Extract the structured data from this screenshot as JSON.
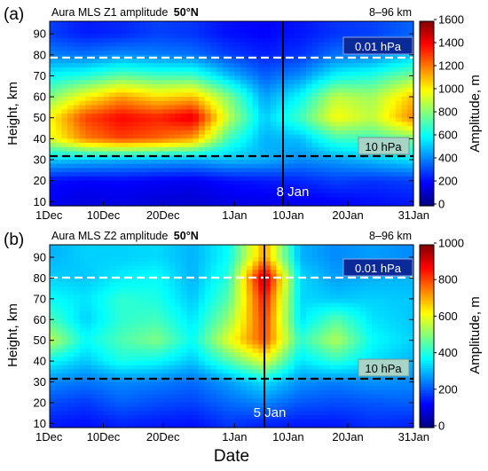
{
  "x_axis": {
    "title": "Date",
    "tick_labels": [
      "1Dec",
      "10Dec",
      "20Dec",
      "1Jan",
      "10Jan",
      "20Jan",
      "31Jan"
    ],
    "tick_days": [
      0,
      9,
      19,
      31,
      40,
      50,
      61
    ]
  },
  "chart_data": [
    {
      "type": "heatmap",
      "panel_label": "(a)",
      "title": "Aura MLS Z1 amplitude 50°N",
      "title_main": "Aura MLS Z1 amplitude",
      "title_lat": "50°N",
      "height_range_label": "8–96 km",
      "xlabel": "Date",
      "ylabel": "Height, km",
      "xlim": [
        "1Dec",
        "31Jan"
      ],
      "ylim": [
        8,
        96
      ],
      "y_ticks": [
        "10",
        "20",
        "30",
        "40",
        "50",
        "60",
        "70",
        "80",
        "90"
      ],
      "colorbar": {
        "label": "Amplitude, m",
        "min": 0,
        "max": 1600,
        "tick_labels": [
          "0",
          "200",
          "400",
          "600",
          "800",
          "1000",
          "1200",
          "1400",
          "1600"
        ]
      },
      "pressure_levels": [
        {
          "label": "0.01 hPa",
          "height_km": 81,
          "line_color": "#ffffff"
        },
        {
          "label": "10 hPa",
          "height_km": 32,
          "line_color": "#000000"
        }
      ],
      "event": {
        "label": "8 Jan",
        "day": 38
      },
      "x_days": [
        0,
        6,
        12,
        18,
        24,
        30,
        36,
        42,
        48,
        54,
        61
      ],
      "y_km": [
        10,
        20,
        30,
        40,
        50,
        60,
        70,
        80,
        90
      ],
      "z": [
        [
          180,
          150,
          160,
          140,
          130,
          160,
          170,
          180,
          200,
          220,
          240
        ],
        [
          220,
          200,
          210,
          190,
          180,
          220,
          240,
          260,
          300,
          280,
          300
        ],
        [
          520,
          500,
          480,
          470,
          460,
          500,
          480,
          420,
          450,
          500,
          560
        ],
        [
          950,
          1200,
          1300,
          1250,
          1150,
          700,
          480,
          500,
          700,
          700,
          800
        ],
        [
          1000,
          1300,
          1400,
          1350,
          1450,
          900,
          520,
          700,
          1000,
          900,
          1200
        ],
        [
          800,
          1000,
          1150,
          1050,
          1100,
          800,
          450,
          600,
          900,
          850,
          1100
        ],
        [
          600,
          650,
          750,
          700,
          700,
          500,
          350,
          420,
          600,
          650,
          800
        ],
        [
          400,
          380,
          420,
          400,
          380,
          300,
          250,
          280,
          380,
          400,
          500
        ],
        [
          300,
          240,
          260,
          300,
          280,
          220,
          200,
          230,
          280,
          300,
          360
        ]
      ]
    },
    {
      "type": "heatmap",
      "panel_label": "(b)",
      "title": "Aura MLS Z2 amplitude 50°N",
      "title_main": "Aura MLS Z2 amplitude",
      "title_lat": "50°N",
      "height_range_label": "8–96 km",
      "xlabel": "Date",
      "ylabel": "Height, km",
      "xlim": [
        "1Dec",
        "31Jan"
      ],
      "ylim": [
        8,
        96
      ],
      "y_ticks": [
        "10",
        "20",
        "30",
        "40",
        "50",
        "60",
        "70",
        "80",
        "90"
      ],
      "colorbar": {
        "label": "Amplitude, m",
        "min": 0,
        "max": 1000,
        "tick_labels": [
          "0",
          "200",
          "400",
          "600",
          "800",
          "1000"
        ]
      },
      "pressure_levels": [
        {
          "label": "0.01 hPa",
          "height_km": 81,
          "line_color": "#ffffff"
        },
        {
          "label": "10 hPa",
          "height_km": 32,
          "line_color": "#000000"
        }
      ],
      "event": {
        "label": "5 Jan",
        "day": 35
      },
      "x_days": [
        0,
        6,
        12,
        18,
        24,
        30,
        36,
        42,
        48,
        54,
        61
      ],
      "y_km": [
        10,
        20,
        30,
        40,
        50,
        60,
        70,
        80,
        90
      ],
      "z": [
        [
          150,
          140,
          160,
          150,
          140,
          180,
          160,
          150,
          150,
          170,
          160
        ],
        [
          200,
          180,
          220,
          200,
          190,
          230,
          260,
          210,
          200,
          210,
          220
        ],
        [
          260,
          240,
          260,
          250,
          230,
          280,
          350,
          270,
          250,
          270,
          260
        ],
        [
          380,
          320,
          400,
          380,
          320,
          450,
          600,
          350,
          420,
          350,
          300
        ],
        [
          560,
          380,
          450,
          500,
          380,
          600,
          800,
          420,
          550,
          380,
          330
        ],
        [
          450,
          330,
          420,
          440,
          350,
          520,
          820,
          350,
          460,
          350,
          320
        ],
        [
          380,
          350,
          420,
          400,
          320,
          460,
          860,
          340,
          320,
          330,
          320
        ],
        [
          330,
          320,
          360,
          380,
          300,
          420,
          950,
          340,
          280,
          300,
          300
        ],
        [
          300,
          330,
          330,
          340,
          300,
          380,
          720,
          300,
          260,
          280,
          260
        ]
      ]
    }
  ]
}
